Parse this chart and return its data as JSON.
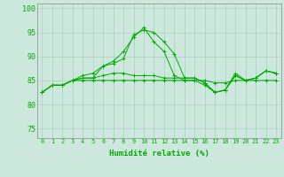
{
  "xlabel": "Humidité relative (%)",
  "bg_color": "#cce8dd",
  "grid_color": "#aacfbf",
  "line_color": "#00aa00",
  "spine_color": "#888888",
  "xlim": [
    -0.5,
    23.5
  ],
  "ylim": [
    73,
    101
  ],
  "yticks": [
    75,
    80,
    85,
    90,
    95,
    100
  ],
  "xticks": [
    0,
    1,
    2,
    3,
    4,
    5,
    6,
    7,
    8,
    9,
    10,
    11,
    12,
    13,
    14,
    15,
    16,
    17,
    18,
    19,
    20,
    21,
    22,
    23
  ],
  "series": [
    [
      82.5,
      84,
      84,
      85,
      85,
      85,
      85,
      85,
      85,
      85,
      85,
      85,
      85,
      85,
      85,
      85,
      85,
      84.5,
      84.5,
      85,
      85,
      85,
      85,
      85
    ],
    [
      82.5,
      84,
      84,
      85,
      85.5,
      85.5,
      86,
      86.5,
      86.5,
      86,
      86,
      86,
      85.5,
      85.5,
      85.5,
      85.5,
      84.5,
      82.5,
      83,
      86,
      85,
      85.5,
      87,
      86.5
    ],
    [
      82.5,
      84,
      84,
      85,
      85.5,
      85.5,
      88,
      88.5,
      89.5,
      94.5,
      95.5,
      95,
      93,
      90.5,
      85.5,
      85.5,
      84.5,
      82.5,
      83,
      86.5,
      85,
      85.5,
      87,
      86.5
    ],
    [
      82.5,
      84,
      84,
      85,
      86,
      86.5,
      88,
      89,
      91,
      94,
      96,
      93,
      91,
      86,
      85,
      85,
      84,
      82.5,
      83,
      86,
      85,
      85.5,
      87,
      86.5
    ]
  ]
}
